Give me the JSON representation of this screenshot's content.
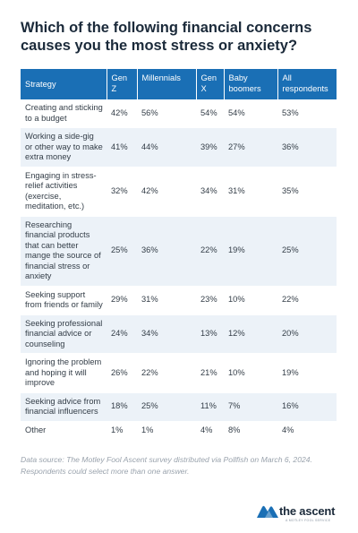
{
  "title": "Which of the following financial concerns causes you the most stress or anxiety?",
  "chart_data": {
    "type": "table",
    "columns": [
      "Strategy",
      "Gen Z",
      "Millennials",
      "Gen X",
      "Baby boomers",
      "All respondents"
    ],
    "rows": [
      [
        "Creating and sticking to a budget",
        "42%",
        "56%",
        "54%",
        "54%",
        "53%"
      ],
      [
        "Working a side-gig or other way to make extra money",
        "41%",
        "44%",
        "39%",
        "27%",
        "36%"
      ],
      [
        "Engaging in stress-relief activities (exercise, meditation, etc.)",
        "32%",
        "42%",
        "34%",
        "31%",
        "35%"
      ],
      [
        "Researching financial products that can better mange the source of financial stress or anxiety",
        "25%",
        "36%",
        "22%",
        "19%",
        "25%"
      ],
      [
        "Seeking support from friends or family",
        "29%",
        "31%",
        "23%",
        "10%",
        "22%"
      ],
      [
        "Seeking professional financial advice or counseling",
        "24%",
        "34%",
        "13%",
        "12%",
        "20%"
      ],
      [
        "Ignoring the problem and hoping it will improve",
        "26%",
        "22%",
        "21%",
        "10%",
        "19%"
      ],
      [
        "Seeking advice from financial influencers",
        "18%",
        "25%",
        "11%",
        "7%",
        "16%"
      ],
      [
        "Other",
        "1%",
        "1%",
        "4%",
        "8%",
        "4%"
      ]
    ]
  },
  "footnote": "Data source: The Motley Fool Ascent survey distributed via Pollfish on March 6, 2024. Respondents could select more than one answer.",
  "brand": {
    "name": "the ascent",
    "tagline": "A MOTLEY FOOL SERVICE"
  },
  "colors": {
    "header_bg": "#1a6fb5",
    "stripe_bg": "#ecf2f8",
    "logo_blue": "#1a6fb5"
  }
}
